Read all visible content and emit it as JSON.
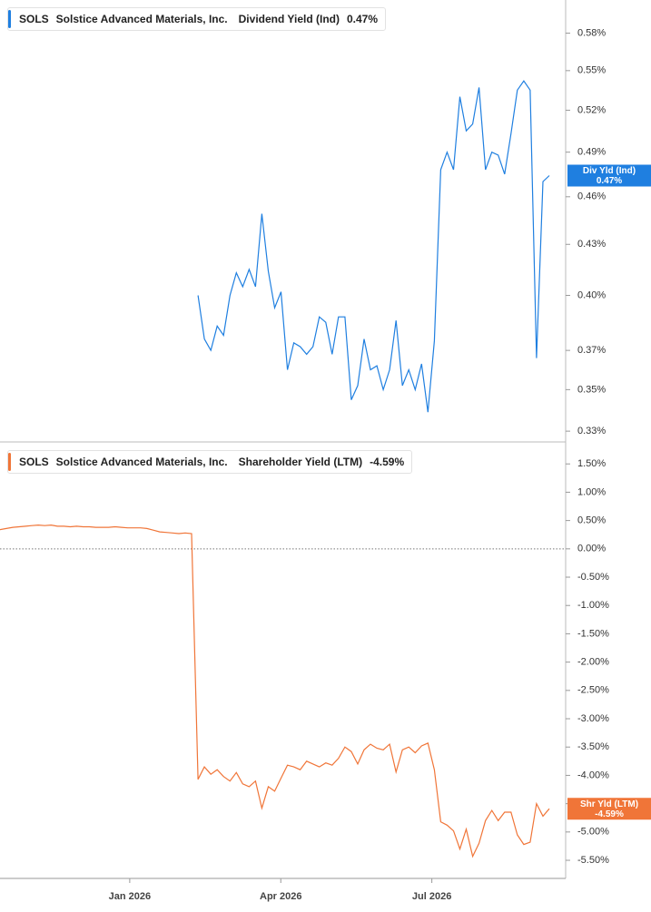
{
  "chart_data": [
    {
      "type": "line",
      "ticker": "SOLS",
      "company": "Solstice Advanced Materials, Inc.",
      "log_scale": true,
      "ylim": [
        0.325,
        0.604
      ],
      "yticks": [
        {
          "value": 0.58,
          "label": "0.58%"
        },
        {
          "value": 0.55,
          "label": "0.55%"
        },
        {
          "value": 0.52,
          "label": "0.52%"
        },
        {
          "value": 0.49,
          "label": "0.49%"
        },
        {
          "value": 0.46,
          "label": "0.46%"
        },
        {
          "value": 0.43,
          "label": "0.43%"
        },
        {
          "value": 0.4,
          "label": "0.40%"
        },
        {
          "value": 0.37,
          "label": "0.37%"
        },
        {
          "value": 0.35,
          "label": "0.35%"
        },
        {
          "value": 0.33,
          "label": "0.33%"
        }
      ],
      "series": [
        {
          "name": "Dividend Yield (Ind)",
          "short_name": "Div Yld (Ind)",
          "last_label": "0.47%",
          "color": "#1f7fe0",
          "values": [
            null,
            null,
            null,
            null,
            null,
            null,
            null,
            null,
            null,
            null,
            null,
            null,
            null,
            null,
            null,
            null,
            null,
            null,
            null,
            null,
            null,
            null,
            null,
            null,
            null,
            null,
            null,
            null,
            null,
            null,
            null,
            0.4,
            0.376,
            0.37,
            0.383,
            0.378,
            0.4,
            0.413,
            0.405,
            0.415,
            0.405,
            0.449,
            0.414,
            0.393,
            0.402,
            0.36,
            0.374,
            0.372,
            0.368,
            0.372,
            0.388,
            0.385,
            0.368,
            0.388,
            0.388,
            0.345,
            0.352,
            0.376,
            0.36,
            0.362,
            0.35,
            0.36,
            0.386,
            0.352,
            0.36,
            0.35,
            0.363,
            0.339,
            0.375,
            0.478,
            0.49,
            0.478,
            0.53,
            0.505,
            0.51,
            0.537,
            0.478,
            0.49,
            0.488,
            0.475,
            0.503,
            0.535,
            0.542,
            0.535,
            0.366,
            0.47,
            0.474
          ]
        }
      ]
    },
    {
      "type": "line",
      "ticker": "SOLS",
      "company": "Solstice Advanced Materials, Inc.",
      "log_scale": false,
      "zero_line": true,
      "ylim": [
        -5.82,
        1.84
      ],
      "yticks": [
        {
          "value": 1.5,
          "label": "1.50%"
        },
        {
          "value": 1,
          "label": "1.00%"
        },
        {
          "value": 0.5,
          "label": "0.50%"
        },
        {
          "value": 0,
          "label": "0.00%"
        },
        {
          "value": -0.5,
          "label": "-0.50%"
        },
        {
          "value": -1,
          "label": "-1.00%"
        },
        {
          "value": -1.5,
          "label": "-1.50%"
        },
        {
          "value": -2,
          "label": "-2.00%"
        },
        {
          "value": -2.5,
          "label": "-2.50%"
        },
        {
          "value": -3,
          "label": "-3.00%"
        },
        {
          "value": -3.5,
          "label": "-3.50%"
        },
        {
          "value": -4,
          "label": "-4.00%"
        },
        {
          "value": -4.5,
          "label": "-4.50%"
        },
        {
          "value": -5,
          "label": "-5.00%"
        },
        {
          "value": -5.5,
          "label": "-5.50%"
        }
      ],
      "xlim": [
        "2025-10",
        "2026-10"
      ],
      "xticks": [
        {
          "value": "2026-01",
          "label": "Jan 2026"
        },
        {
          "value": "2026-04",
          "label": "Apr 2026"
        },
        {
          "value": "2026-07",
          "label": "Jul 2026"
        }
      ],
      "series": [
        {
          "name": "Shareholder Yield (LTM)",
          "short_name": "Shr Yld (LTM)",
          "last_label": "-4.59%",
          "color": "#f07538",
          "values": [
            0.34,
            0.36,
            0.38,
            0.39,
            0.4,
            0.41,
            0.42,
            0.41,
            0.42,
            0.4,
            0.4,
            0.39,
            0.4,
            0.39,
            0.39,
            0.38,
            0.38,
            0.38,
            0.39,
            0.38,
            0.37,
            0.37,
            0.37,
            0.36,
            0.33,
            0.3,
            0.29,
            0.28,
            0.27,
            0.28,
            0.27,
            -4.07,
            -3.85,
            -3.98,
            -3.9,
            -4.02,
            -4.1,
            -3.95,
            -4.15,
            -4.2,
            -4.1,
            -4.58,
            -4.2,
            -4.28,
            -4.05,
            -3.82,
            -3.85,
            -3.9,
            -3.75,
            -3.8,
            -3.85,
            -3.78,
            -3.82,
            -3.7,
            -3.5,
            -3.58,
            -3.8,
            -3.55,
            -3.45,
            -3.52,
            -3.55,
            -3.45,
            -3.94,
            -3.55,
            -3.5,
            -3.6,
            -3.48,
            -3.43,
            -3.9,
            -4.82,
            -4.88,
            -4.98,
            -5.3,
            -4.95,
            -5.43,
            -5.2,
            -4.8,
            -4.62,
            -4.8,
            -4.65,
            -4.65,
            -5.05,
            -5.22,
            -5.18,
            -4.5,
            -4.72,
            -4.59
          ]
        }
      ]
    }
  ]
}
